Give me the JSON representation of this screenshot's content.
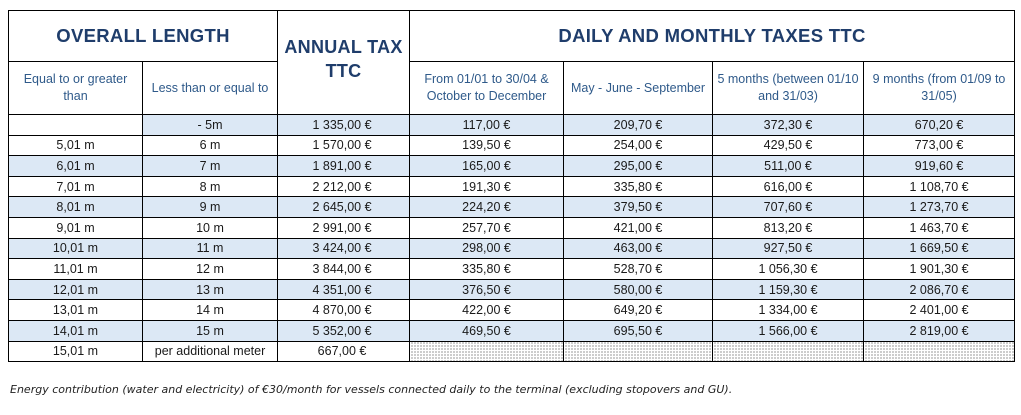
{
  "header": {
    "overall_length": "OVERALL LENGTH",
    "annual_tax": "ANNUAL TAX TTC",
    "daily_monthly": "DAILY AND MONTHLY TAXES TTC",
    "col_min": "Equal to or greater than",
    "col_max": "Less than or equal to",
    "col_p1": "From 01/01 to 30/04 & October to December",
    "col_p2": "May - June - September",
    "col_p3": "5 months (between 01/10 and 31/03)",
    "col_p4": "9 months (from 01/09 to 31/05)"
  },
  "rows": [
    {
      "min": "",
      "max": "- 5m",
      "annual": "1 335,00 €",
      "p1": "117,00 €",
      "p2": "209,70 €",
      "p3": "372,30 €",
      "p4": "670,20 €"
    },
    {
      "min": "5,01 m",
      "max": "6 m",
      "annual": "1 570,00 €",
      "p1": "139,50 €",
      "p2": "254,00 €",
      "p3": "429,50 €",
      "p4": "773,00 €"
    },
    {
      "min": "6,01 m",
      "max": "7 m",
      "annual": "1 891,00 €",
      "p1": "165,00 €",
      "p2": "295,00 €",
      "p3": "511,00 €",
      "p4": "919,60 €"
    },
    {
      "min": "7,01 m",
      "max": "8 m",
      "annual": "2 212,00 €",
      "p1": "191,30 €",
      "p2": "335,80 €",
      "p3": "616,00 €",
      "p4": "1 108,70 €"
    },
    {
      "min": "8,01 m",
      "max": "9 m",
      "annual": "2 645,00 €",
      "p1": "224,20 €",
      "p2": "379,50 €",
      "p3": "707,60 €",
      "p4": "1 273,70 €"
    },
    {
      "min": "9,01 m",
      "max": "10 m",
      "annual": "2 991,00 €",
      "p1": "257,70 €",
      "p2": "421,00 €",
      "p3": "813,20 €",
      "p4": "1 463,70 €"
    },
    {
      "min": "10,01 m",
      "max": "11 m",
      "annual": "3 424,00 €",
      "p1": "298,00 €",
      "p2": "463,00 €",
      "p3": "927,50 €",
      "p4": "1 669,50 €"
    },
    {
      "min": "11,01 m",
      "max": "12 m",
      "annual": "3 844,00 €",
      "p1": "335,80 €",
      "p2": "528,70 €",
      "p3": "1 056,30 €",
      "p4": "1 901,30 €"
    },
    {
      "min": "12,01 m",
      "max": "13 m",
      "annual": "4 351,00 €",
      "p1": "376,50 €",
      "p2": "580,00 €",
      "p3": "1 159,30 €",
      "p4": "2 086,70 €"
    },
    {
      "min": "13,01 m",
      "max": "14 m",
      "annual": "4 870,00 €",
      "p1": "422,00 €",
      "p2": "649,20 €",
      "p3": "1 334,00 €",
      "p4": "2 401,00 €"
    },
    {
      "min": "14,01 m",
      "max": "15 m",
      "annual": "5 352,00 €",
      "p1": "469,50 €",
      "p2": "695,50 €",
      "p3": "1 566,00 €",
      "p4": "2 819,00 €"
    },
    {
      "min": "15,01 m",
      "max": "per additional meter",
      "annual": "667,00 €",
      "p1": "",
      "p2": "",
      "p3": "",
      "p4": ""
    }
  ],
  "footnote": "Energy contribution (water and electricity) of €30/month for vessels connected daily to the terminal (excluding stopovers and GU).",
  "colors": {
    "header_text": "#1f3d6b",
    "subheader_text": "#2f5a8a",
    "alt_row": "#dce8f5"
  }
}
